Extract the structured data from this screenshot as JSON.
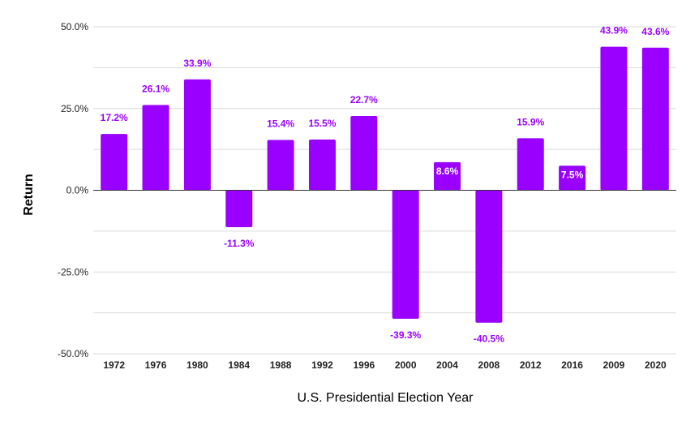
{
  "chart_data": {
    "type": "bar",
    "title": "",
    "xlabel": "U.S. Presidential Election Year",
    "ylabel": "Return",
    "ylim": [
      -50,
      50
    ],
    "yticks": [
      "50.0%",
      "25.0%",
      "0.0%",
      "-25.0%",
      "-50.0%"
    ],
    "ytick_values": [
      50,
      25,
      0,
      -25,
      -50
    ],
    "minor_grid_values": [
      37.5,
      12.5,
      -12.5,
      -37.5
    ],
    "grid": true,
    "legend": "none",
    "categories": [
      "1972",
      "1976",
      "1980",
      "1984",
      "1988",
      "1992",
      "1996",
      "2000",
      "2004",
      "2008",
      "2012",
      "2016",
      "2009",
      "2020"
    ],
    "values": [
      17.2,
      26.1,
      33.9,
      -11.3,
      15.4,
      15.5,
      22.7,
      -39.3,
      8.6,
      -40.5,
      15.9,
      7.5,
      43.9,
      43.6
    ],
    "labels": [
      "17.2%",
      "26.1%",
      "33.9%",
      "-11.3%",
      "15.4%",
      "15.5%",
      "22.7%",
      "-39.3%",
      "8.6%",
      "-40.5%",
      "15.9%",
      "7.5%",
      "43.9%",
      "43.6%"
    ],
    "label_inside": [
      false,
      false,
      false,
      false,
      false,
      false,
      false,
      false,
      true,
      false,
      false,
      true,
      false,
      false
    ],
    "colors": {
      "bar": "#9900ff",
      "label_outside": "#9900ff",
      "label_inside": "#ffffff",
      "grid": "#d9d9d9",
      "zero_line": "#333333"
    }
  }
}
